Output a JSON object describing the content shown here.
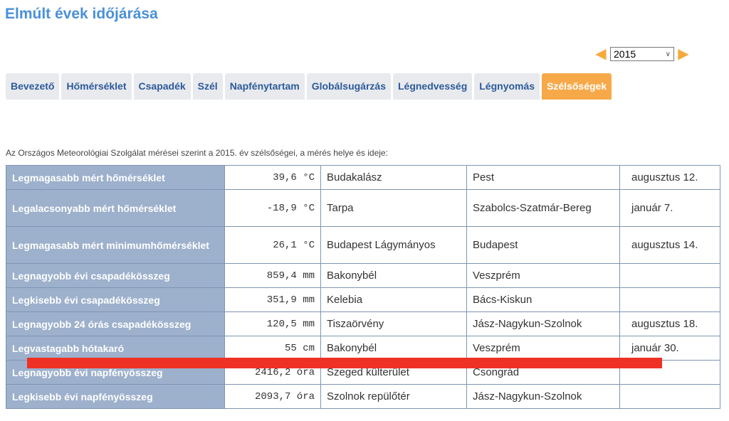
{
  "title": "Elmúlt évek időjárása",
  "year_select": {
    "value": "2015"
  },
  "tabs": [
    "Bevezető",
    "Hőmérséklet",
    "Csapadék",
    "Szél",
    "Napfénytartam",
    "Globálsugárzás",
    "Légnedvesség",
    "Légnyomás",
    "Szélsőségek"
  ],
  "active_tab": "Szélsőségek",
  "intro": "Az Országos Meteorológiai Szolgálat mérései szerint a 2015. év szélsőségei, a mérés helye és ideje:",
  "rows": [
    [
      "Legmagasabb mért hőmérséklet",
      "39,6 °C",
      "Budakalász",
      "Pest",
      "augusztus 12."
    ],
    [
      "Legalacsonyabb mért hőmérséklet",
      "-18,9 °C",
      "Tarpa",
      "Szabolcs-Szatmár-Bereg",
      "január 7."
    ],
    [
      "Legmagasabb mért minimumhőmérséklet",
      "26,1 °C",
      "Budapest Lágymányos",
      "Budapest",
      "augusztus 14."
    ],
    [
      "Legnagyobb évi csapadékösszeg",
      "859,4 mm",
      "Bakonybél",
      "Veszprém",
      ""
    ],
    [
      "Legkisebb évi csapadékösszeg",
      "351,9 mm",
      "Kelebia",
      "Bács-Kiskun",
      ""
    ],
    [
      "Legnagyobb 24 órás csapadékösszeg",
      "120,5 mm",
      "Tiszaörvény",
      "Jász-Nagykun-Szolnok",
      "augusztus 18."
    ],
    [
      "Legvastagabb hótakaró",
      "55 cm",
      "Bakonybél",
      "Veszprém",
      "január 30."
    ],
    [
      "Legnagyobb évi napfényösszeg",
      "2416,2 óra",
      "Szeged külterület",
      "Csongrád",
      ""
    ],
    [
      "Legkisebb évi napfényösszeg",
      "2093,7 óra",
      "Szolnok repülőtér",
      "Jász-Nagykun-Szolnok",
      ""
    ]
  ],
  "colors": {
    "title": "#4a90d9",
    "active_tab": "#f7a94a",
    "label_cell": "#9db0cc",
    "annotation": "#ee3124"
  }
}
